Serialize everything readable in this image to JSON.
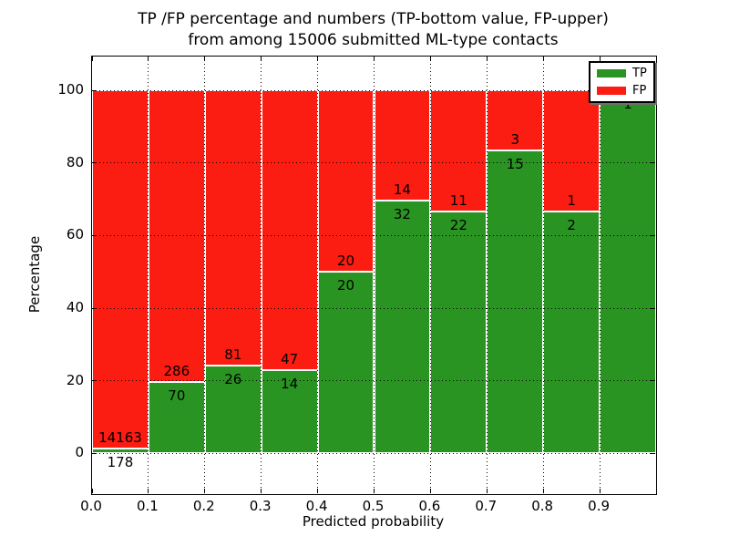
{
  "title": {
    "line1": "TP /FP percentage and numbers (TP-bottom value, FP-upper)",
    "line2": "from among 15006 submitted ML-type contacts"
  },
  "chart_data": {
    "type": "bar",
    "stacked": true,
    "normalized": "each bin stacked to 100%",
    "total_contacts": 15006,
    "bins": {
      "edges": [
        0.0,
        0.1,
        0.2,
        0.3,
        0.4,
        0.5,
        0.6,
        0.7,
        0.8,
        0.9,
        1.0
      ],
      "width": 0.1
    },
    "series": [
      {
        "name": "TP",
        "color": "#2a9422",
        "values": [
          178,
          70,
          26,
          14,
          20,
          32,
          22,
          15,
          2,
          1
        ]
      },
      {
        "name": "FP",
        "color": "#fb1c12",
        "values": [
          14163,
          286,
          81,
          47,
          20,
          14,
          11,
          3,
          1,
          0
        ]
      }
    ],
    "tp_percent_per_bin": [
      1.24,
      19.66,
      24.3,
      22.95,
      50.0,
      69.57,
      66.67,
      83.33,
      66.67,
      100.0
    ],
    "xlabel": "Predicted probability",
    "ylabel": "Percentage",
    "x_ticks": [
      "0.0",
      "0.1",
      "0.2",
      "0.3",
      "0.4",
      "0.5",
      "0.6",
      "0.7",
      "0.8",
      "0.9"
    ],
    "y_ticks": [
      0,
      20,
      40,
      60,
      80,
      100
    ],
    "xlim": [
      0,
      1
    ],
    "ylim": [
      -11.2,
      109.3
    ],
    "grid": {
      "style": "dotted",
      "color": "#000000"
    },
    "bar_edge_color": "#ffffff",
    "legend": {
      "position": "upper right",
      "entries": [
        {
          "label": "TP",
          "color": "#2a9422"
        },
        {
          "label": "FP",
          "color": "#fb1c12"
        }
      ]
    }
  }
}
